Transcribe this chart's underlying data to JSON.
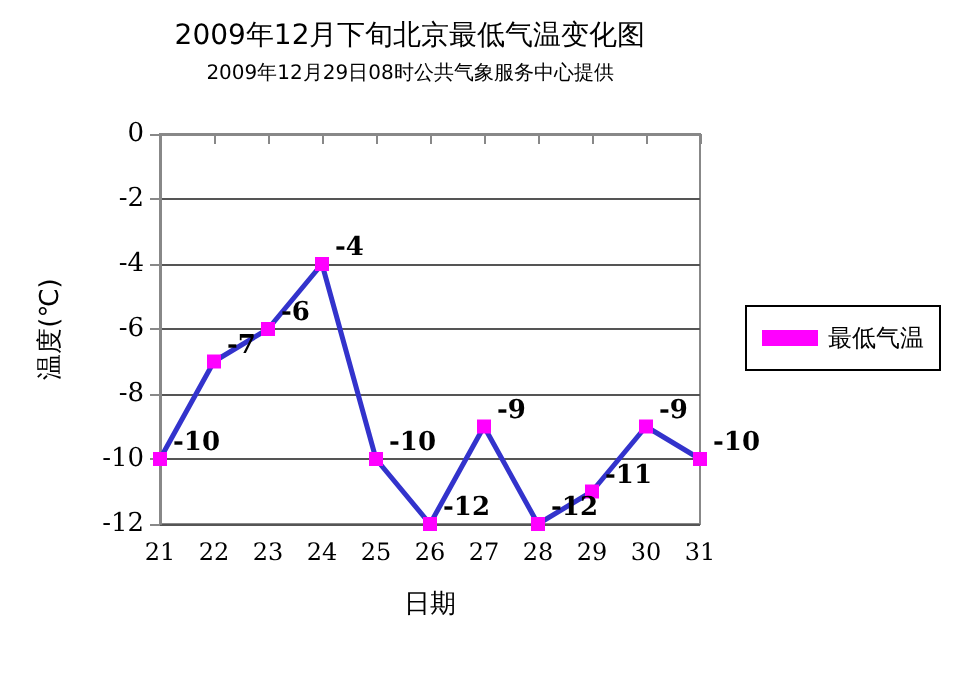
{
  "chart_data": {
    "type": "line",
    "title": "2009年12月下旬北京最低气温变化图",
    "subtitle": "2009年12月29日08时公共气象服务中心提供",
    "xlabel": "日期",
    "ylabel": "温度(℃)",
    "categories": [
      "21",
      "22",
      "23",
      "24",
      "25",
      "26",
      "27",
      "28",
      "29",
      "30",
      "31"
    ],
    "series": [
      {
        "name": "最低气温",
        "color": "#3333cc",
        "values": [
          -10,
          -7,
          -6,
          -4,
          -10,
          -12,
          -9,
          -12,
          -11,
          -9,
          -10
        ]
      }
    ],
    "ylim": [
      -12,
      0
    ],
    "yticks": [
      0,
      -2,
      -4,
      -6,
      -8,
      -10,
      -12
    ],
    "grid": "y",
    "legend": "right",
    "marker": "square",
    "line_style": "solid",
    "data_labels": true
  }
}
